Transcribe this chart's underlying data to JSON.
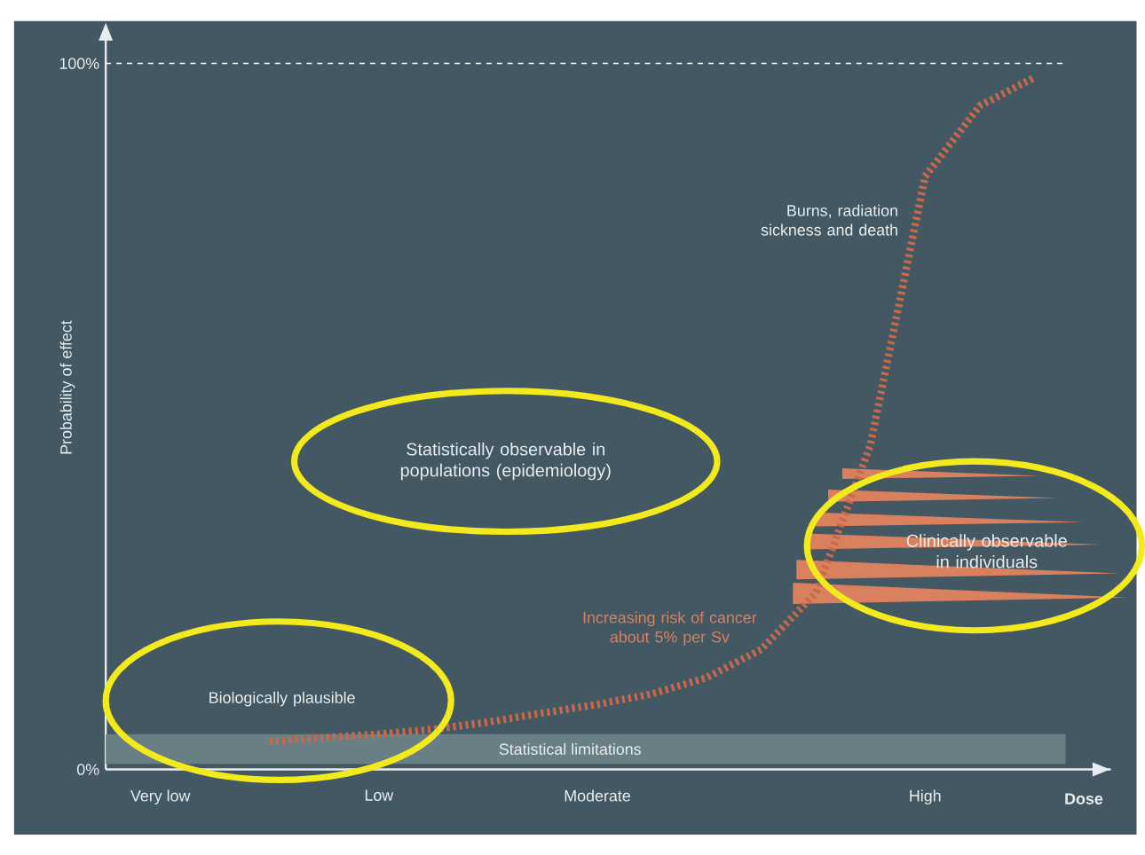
{
  "chart_data": {
    "type": "line",
    "ylabel": "Probability of effect",
    "xlabel": "Dose",
    "categories": [
      null,
      "Very low",
      null,
      null,
      null,
      "Low",
      null,
      null,
      null,
      "Moderate",
      null,
      null,
      null,
      null,
      null,
      "High",
      null,
      null
    ],
    "ylim": [
      0,
      104
    ],
    "yticks": [
      {
        "value": 0,
        "label": "0%"
      },
      {
        "value": 100,
        "label": "100%"
      }
    ],
    "series": [
      {
        "color": "#c8694a",
        "values": [
          null,
          null,
          null,
          4,
          4.5,
          5,
          5.7,
          6.7,
          8,
          9.2,
          10.7,
          13,
          17,
          25,
          46,
          84,
          94,
          98
        ]
      }
    ],
    "line_style": "dashed",
    "ref_lines": [
      {
        "axis": "y",
        "value": 100,
        "color": "#ffffff",
        "line_style": "dashed"
      }
    ],
    "bands": [
      {
        "axis": "y",
        "from": 0.8,
        "to": 5,
        "label": "Statistical limitations",
        "color": "#6a7e86"
      }
    ],
    "annotations": [
      "Burns, radiation sickness and death",
      "Statistically observable in populations (epidemiology)",
      "Clinically observable in individuals",
      "Increasing risk of cancer about 5% per Sv",
      "Biologically plausible"
    ]
  }
}
